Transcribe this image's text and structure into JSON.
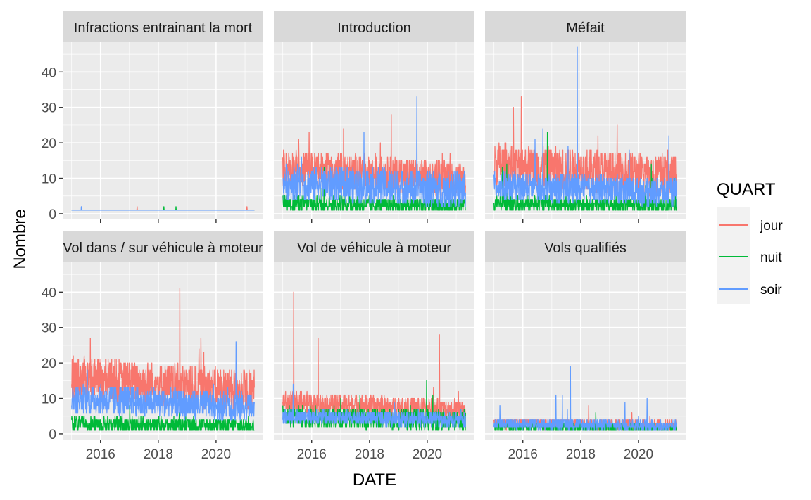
{
  "chart_data": {
    "type": "line",
    "layout": "facet_wrap 2x3",
    "xlabel": "DATE",
    "ylabel": "Nombre",
    "x_range": [
      "2015-01-01",
      "2021-04-30"
    ],
    "x_ticks": [
      "2016",
      "2018",
      "2020"
    ],
    "y_range": [
      0,
      48
    ],
    "y_ticks": [
      0,
      10,
      20,
      30,
      40
    ],
    "legend": {
      "title": "QUART",
      "placement": "right",
      "entries": [
        {
          "name": "jour",
          "color": "#F8766D"
        },
        {
          "name": "nuit",
          "color": "#00BA38"
        },
        {
          "name": "soir",
          "color": "#619CFF"
        }
      ]
    },
    "panels": [
      {
        "title": "Infractions entrainant la mort",
        "levels": {
          "jour": {
            "base": 1,
            "amp": 0.3,
            "max": 2
          },
          "nuit": {
            "base": 1,
            "amp": 0.2,
            "max": 2
          },
          "soir": {
            "base": 1,
            "amp": 0.1,
            "max": 2
          }
        }
      },
      {
        "title": "Introduction",
        "levels": {
          "jour": {
            "base": 13,
            "amp": 5,
            "max": 28
          },
          "nuit": {
            "base": 3,
            "amp": 2,
            "max": 13
          },
          "soir": {
            "base": 9,
            "amp": 5,
            "max": 33
          }
        }
      },
      {
        "title": "Méfait",
        "levels": {
          "jour": {
            "base": 14,
            "amp": 6,
            "max": 33
          },
          "nuit": {
            "base": 3,
            "amp": 2,
            "max": 23
          },
          "soir": {
            "base": 8,
            "amp": 4,
            "max": 47
          }
        }
      },
      {
        "title": "Vol dans / sur véhicule à moteur",
        "levels": {
          "jour": {
            "base": 16,
            "amp": 6,
            "max": 41
          },
          "nuit": {
            "base": 3,
            "amp": 2,
            "max": 8
          },
          "soir": {
            "base": 10,
            "amp": 4,
            "max": 26
          }
        }
      },
      {
        "title": "Vol de véhicule à moteur",
        "levels": {
          "jour": {
            "base": 9,
            "amp": 3,
            "max": 40
          },
          "nuit": {
            "base": 5,
            "amp": 3,
            "max": 15
          },
          "soir": {
            "base": 5,
            "amp": 2,
            "max": 14
          }
        }
      },
      {
        "title": "Vols qualifiés",
        "levels": {
          "jour": {
            "base": 3,
            "amp": 1.5,
            "max": 8
          },
          "nuit": {
            "base": 2,
            "amp": 1,
            "max": 6
          },
          "soir": {
            "base": 3,
            "amp": 1.5,
            "max": 19
          }
        }
      }
    ]
  }
}
